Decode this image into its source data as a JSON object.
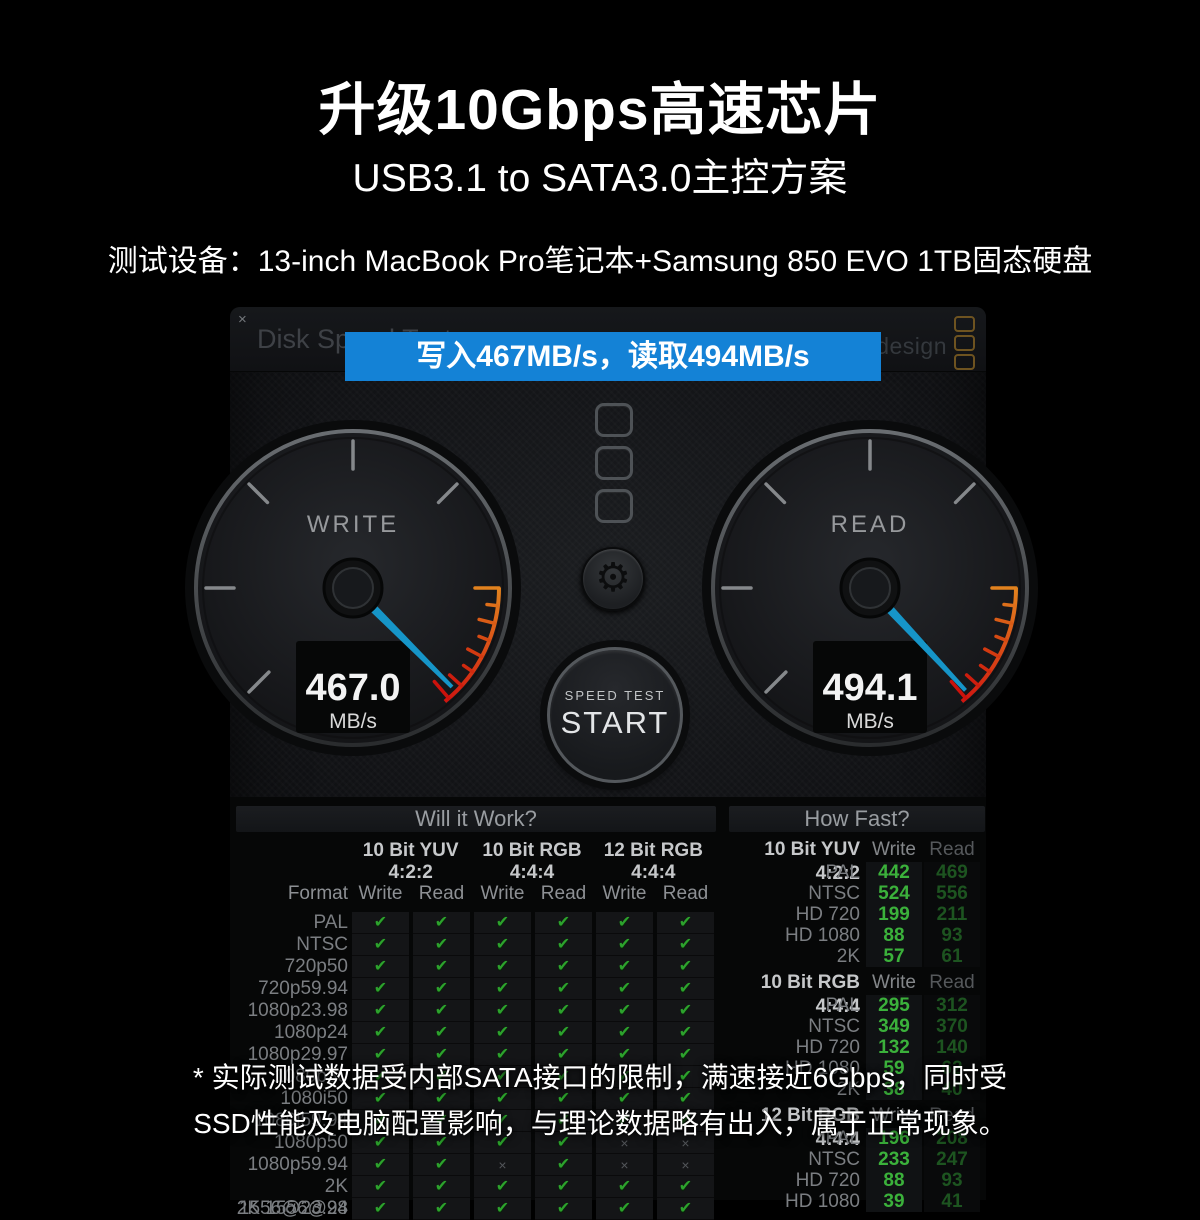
{
  "hero": {
    "title": "升级10Gbps高速芯片",
    "subtitle": "USB3.1 to SATA3.0主控方案",
    "device_line": "测试设备：13-inch MacBook Pro笔记本+Samsung 850 EVO 1TB固态硬盘"
  },
  "window": {
    "title": "Disk Speed Test",
    "brand": "Blackmagicdesign",
    "close": "×",
    "banner_text": "写入467MB/s，读取494MB/s",
    "banner_color": "#1482d6",
    "gear_icon": "⚙",
    "start_button": {
      "top": "SPEED TEST",
      "label": "START"
    },
    "gauges": [
      {
        "name": "write",
        "label": "WRITE",
        "value": "467.0",
        "unit": "MB/s",
        "needle_deg": 135
      },
      {
        "name": "read",
        "label": "READ",
        "value": "494.1",
        "unit": "MB/s",
        "needle_deg": 137
      }
    ]
  },
  "will_it_work": {
    "title": "Will it Work?",
    "format_header": "Format",
    "groups": [
      "10 Bit YUV 4:2:2",
      "10 Bit RGB 4:4:4",
      "12 Bit RGB 4:4:4"
    ],
    "subheaders": [
      "Write",
      "Read",
      "Write",
      "Read",
      "Write",
      "Read"
    ],
    "rows": [
      {
        "format": "PAL",
        "checks": [
          "y",
          "y",
          "y",
          "y",
          "y",
          "y"
        ]
      },
      {
        "format": "NTSC",
        "checks": [
          "y",
          "y",
          "y",
          "y",
          "y",
          "y"
        ]
      },
      {
        "format": "720p50",
        "checks": [
          "y",
          "y",
          "y",
          "y",
          "y",
          "y"
        ]
      },
      {
        "format": "720p59.94",
        "checks": [
          "y",
          "y",
          "y",
          "y",
          "y",
          "y"
        ]
      },
      {
        "format": "1080p23.98",
        "checks": [
          "y",
          "y",
          "y",
          "y",
          "y",
          "y"
        ]
      },
      {
        "format": "1080p24",
        "checks": [
          "y",
          "y",
          "y",
          "y",
          "y",
          "y"
        ]
      },
      {
        "format": "1080p29.97",
        "checks": [
          "y",
          "y",
          "y",
          "y",
          "y",
          "y"
        ]
      },
      {
        "format": "1080p30",
        "checks": [
          "y",
          "y",
          "y",
          "y",
          "y",
          "y"
        ]
      },
      {
        "format": "1080i50",
        "checks": [
          "y",
          "y",
          "y",
          "y",
          "y",
          "y"
        ]
      },
      {
        "format": "1080i59.94",
        "checks": [
          "y",
          "y",
          "y",
          "y",
          "y",
          "y"
        ]
      },
      {
        "format": "1080p50",
        "checks": [
          "y",
          "y",
          "y",
          "y",
          "n",
          "n"
        ]
      },
      {
        "format": "1080p59.94",
        "checks": [
          "y",
          "y",
          "n",
          "y",
          "n",
          "n"
        ]
      },
      {
        "format": "2K 1556@23.98",
        "checks": [
          "y",
          "y",
          "y",
          "y",
          "y",
          "y"
        ]
      },
      {
        "format": "2K 1556@24",
        "checks": [
          "y",
          "y",
          "y",
          "y",
          "y",
          "y"
        ]
      }
    ]
  },
  "how_fast": {
    "title": "How Fast?",
    "rows": [
      {
        "kind": "header",
        "label": "10 Bit YUV 4:2:2",
        "write": "Write",
        "read": "Read"
      },
      {
        "kind": "data",
        "label": "PAL",
        "write": "442",
        "read": "469"
      },
      {
        "kind": "data",
        "label": "NTSC",
        "write": "524",
        "read": "556"
      },
      {
        "kind": "data",
        "label": "HD 720",
        "write": "199",
        "read": "211"
      },
      {
        "kind": "data",
        "label": "HD 1080",
        "write": "88",
        "read": "93"
      },
      {
        "kind": "data",
        "label": "2K",
        "write": "57",
        "read": "61"
      },
      {
        "kind": "header",
        "label": "10 Bit RGB 4:4:4",
        "write": "Write",
        "read": "Read"
      },
      {
        "kind": "data",
        "label": "PAL",
        "write": "295",
        "read": "312"
      },
      {
        "kind": "data",
        "label": "NTSC",
        "write": "349",
        "read": "370"
      },
      {
        "kind": "data",
        "label": "HD 720",
        "write": "132",
        "read": "140"
      },
      {
        "kind": "data",
        "label": "HD 1080",
        "write": "59",
        "read": "62"
      },
      {
        "kind": "data",
        "label": "2K",
        "write": "38",
        "read": "40"
      },
      {
        "kind": "header",
        "label": "12 Bit RGB 4:4:4",
        "write": "Write",
        "read": "Read"
      },
      {
        "kind": "data",
        "label": "PAL",
        "write": "196",
        "read": "208"
      },
      {
        "kind": "data",
        "label": "NTSC",
        "write": "233",
        "read": "247"
      },
      {
        "kind": "data",
        "label": "HD 720",
        "write": "88",
        "read": "93"
      },
      {
        "kind": "data",
        "label": "HD 1080",
        "write": "39",
        "read": "41"
      }
    ]
  },
  "footnote": {
    "line1": "* 实际测试数据受内部SATA接口的限制，满速接近6Gbps，同时受",
    "line2": "SSD性能及电脑配置影响，与理论数据略有出入，属于正常现象。"
  },
  "glyphs": {
    "check": "✔",
    "cross": "×"
  },
  "colors": {
    "banner_blue": "#1482d6",
    "needle_teal": "#1695c8",
    "check_green": "#2da22d",
    "write_value_green": "#3bb13b",
    "read_value_green": "#1d5420",
    "redline": "#cc1810"
  }
}
